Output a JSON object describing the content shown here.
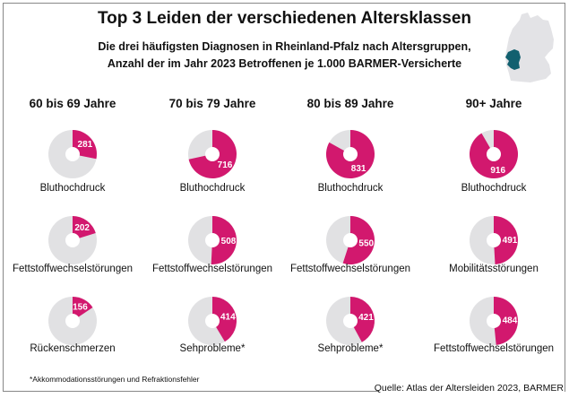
{
  "colors": {
    "accent": "#d2186e",
    "rest": "#e1e1e3",
    "map_land": "#e3e3e6",
    "map_highlight": "#12606f"
  },
  "chart_data": {
    "type": "pie",
    "variant": "donut",
    "title": "Top 3 Leiden der verschiedenen Altersklassen",
    "subtitle_line1": "Die drei häufigsten Diagnosen in Rheinland-Pfalz nach Altersgruppen,",
    "subtitle_line2": "Anzahl der im Jahr 2023 Betroffenen je 1.000 BARMER-Versicherte",
    "scale_max": 1000,
    "groups": [
      {
        "name": "60 bis 69 Jahre",
        "items": [
          {
            "label": "Bluthochdruck",
            "value": 281
          },
          {
            "label": "Fettstoffwechselstörungen",
            "value": 202
          },
          {
            "label": "Rückenschmerzen",
            "value": 156
          }
        ]
      },
      {
        "name": "70 bis 79 Jahre",
        "items": [
          {
            "label": "Bluthochdruck",
            "value": 716
          },
          {
            "label": "Fettstoffwechselstörungen",
            "value": 508
          },
          {
            "label": "Sehprobleme*",
            "value": 414
          }
        ]
      },
      {
        "name": "80 bis 89 Jahre",
        "items": [
          {
            "label": "Bluthochdruck",
            "value": 831
          },
          {
            "label": "Fettstoffwechselstörungen",
            "value": 550
          },
          {
            "label": "Sehprobleme*",
            "value": 421
          }
        ]
      },
      {
        "name": "90+ Jahre",
        "items": [
          {
            "label": "Bluthochdruck",
            "value": 916
          },
          {
            "label": "Mobilitätsstörungen",
            "value": 491
          },
          {
            "label": "Fettstoffwechselstörungen",
            "value": 484
          }
        ]
      }
    ],
    "footnote": "*Akkommodationsstörungen und Refraktionsfehler",
    "source": "Quelle: Atlas der Altersleiden 2023, BARMER"
  }
}
